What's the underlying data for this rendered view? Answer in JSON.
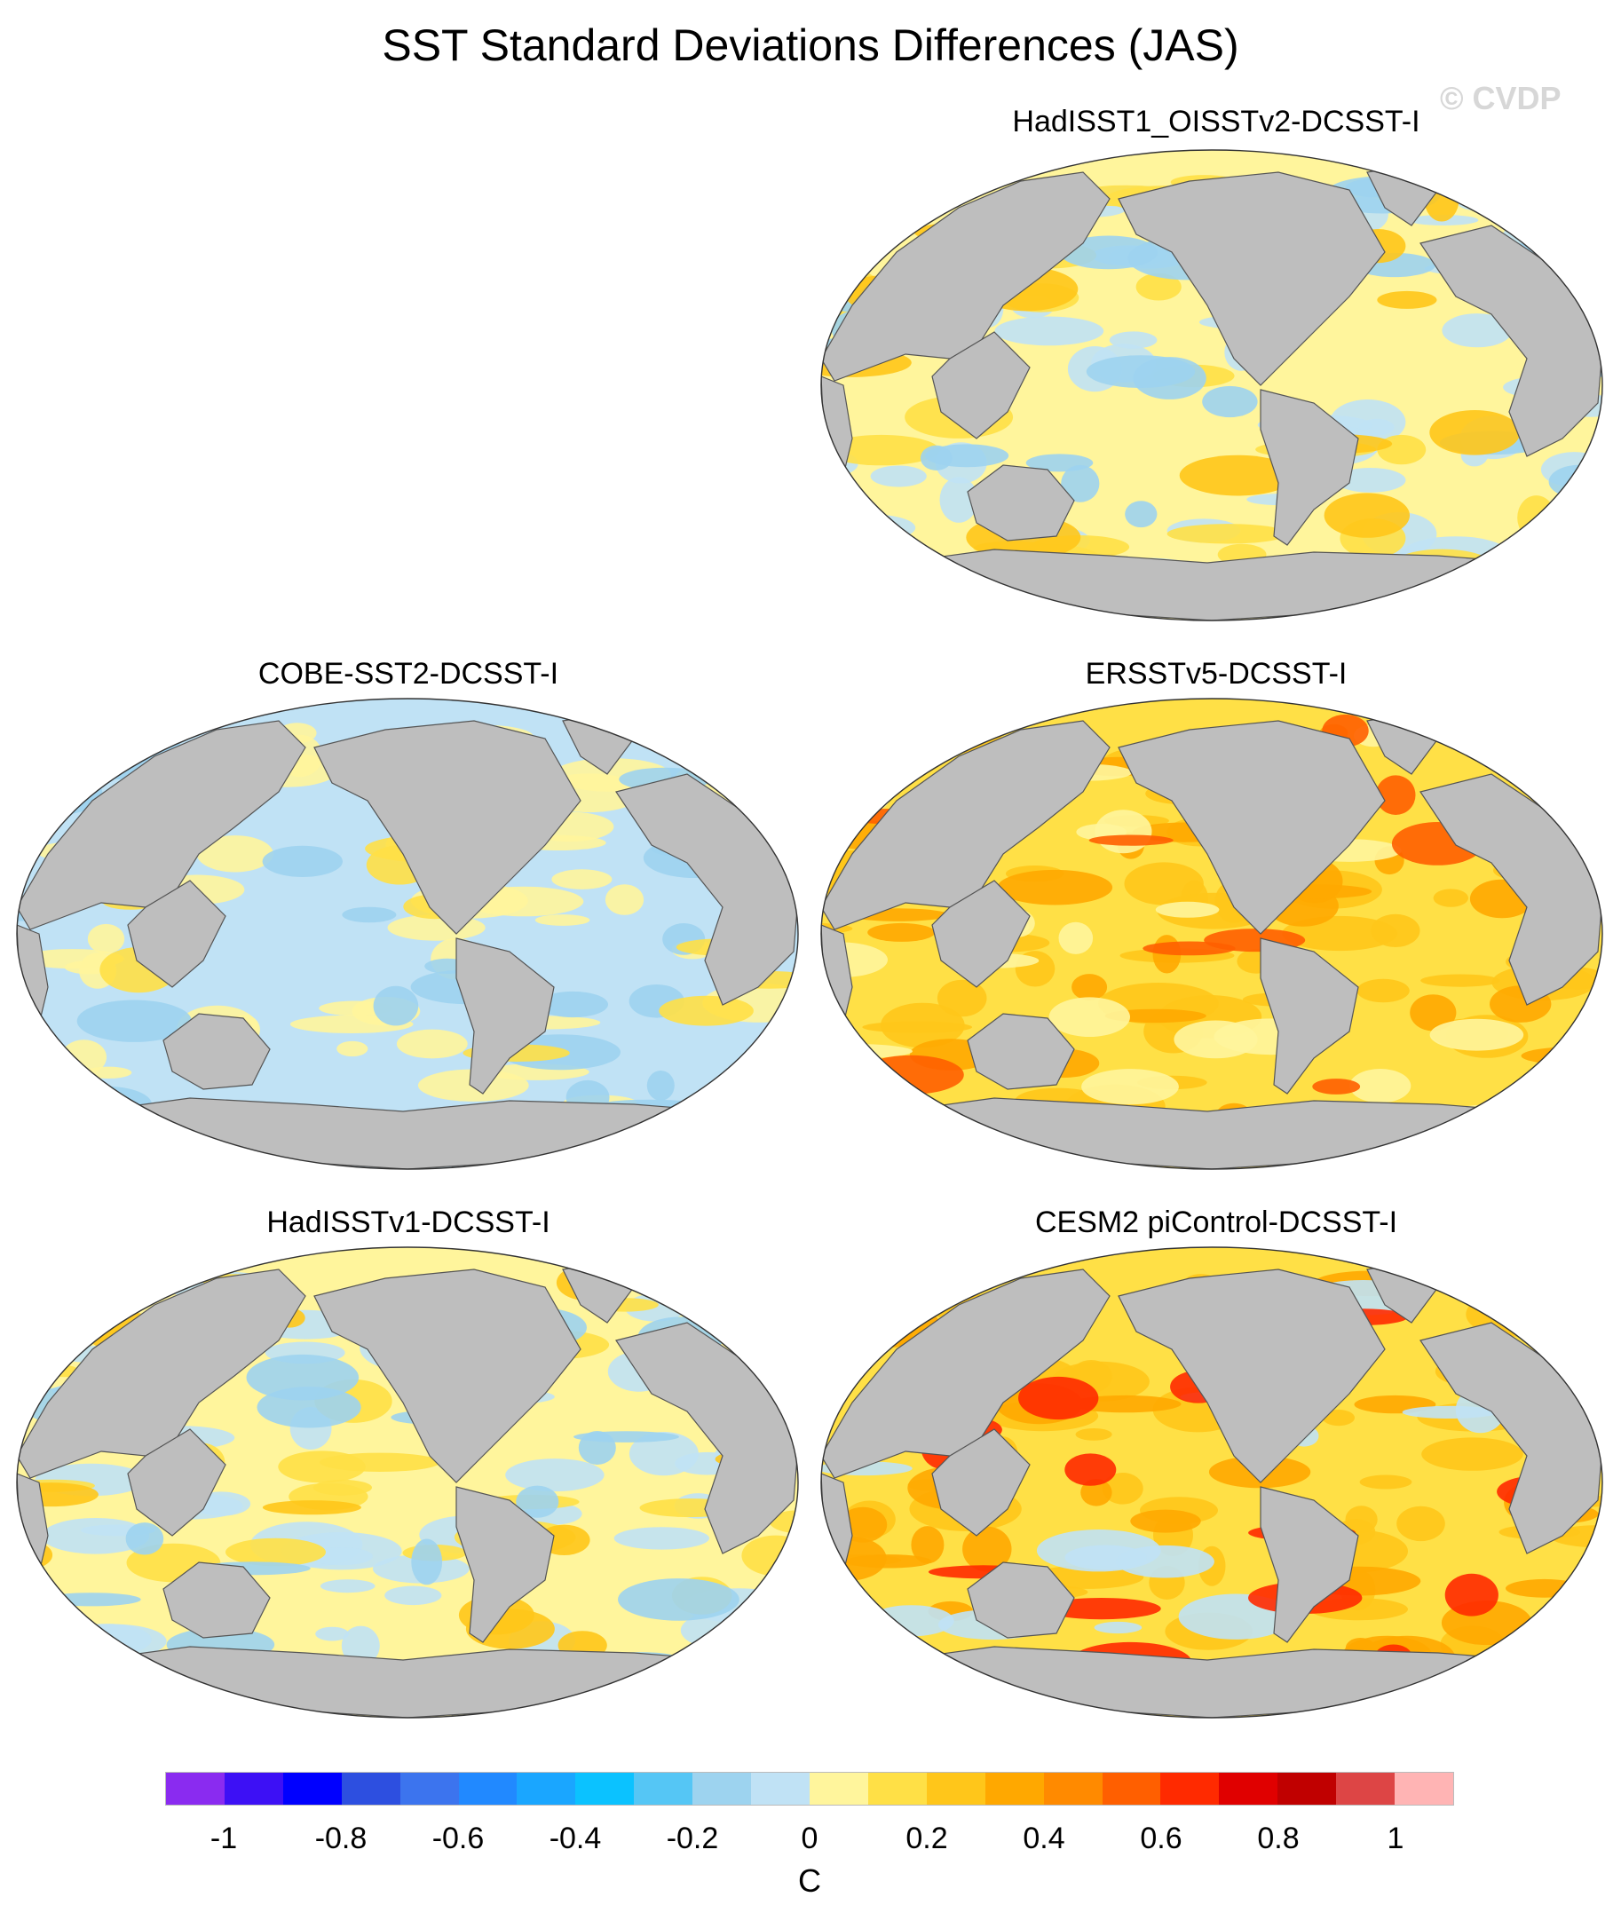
{
  "title": "SST Standard Deviations Differences (JAS)",
  "watermark": "© CVDP",
  "panels": [
    {
      "id": "hadisst-oisst",
      "title": "HadISST1_OISSTv2-DCSST-I",
      "pattern": "mixed"
    },
    {
      "id": "cobe",
      "title": "COBE-SST2-DCSST-I",
      "pattern": "cool"
    },
    {
      "id": "ersst",
      "title": "ERSSTv5-DCSST-I",
      "pattern": "warm"
    },
    {
      "id": "hadisst",
      "title": "HadISSTv1-DCSST-I",
      "pattern": "mixed"
    },
    {
      "id": "cesm2",
      "title": "CESM2 piControl-DCSST-I",
      "pattern": "hot"
    }
  ],
  "colorbar": {
    "unit": "C",
    "colors": [
      "#8a2bf0",
      "#3d10f5",
      "#0000ff",
      "#2d4fe0",
      "#3c74ee",
      "#2189ff",
      "#1aa6ff",
      "#0bc2ff",
      "#55c6f5",
      "#9dd3ef",
      "#c0e2f5",
      "#fff59c",
      "#ffe046",
      "#ffc61a",
      "#ffa800",
      "#ff8a00",
      "#ff5f00",
      "#ff2a00",
      "#e00000",
      "#c00000",
      "#dd4545",
      "#ffb4b4"
    ],
    "tick_labels": [
      "-1",
      "-0.8",
      "-0.6",
      "-0.4",
      "-0.2",
      "0",
      "0.2",
      "0.4",
      "0.6",
      "0.8",
      "1"
    ]
  },
  "colors": {
    "land": "#bebebe",
    "coast": "#555555"
  }
}
